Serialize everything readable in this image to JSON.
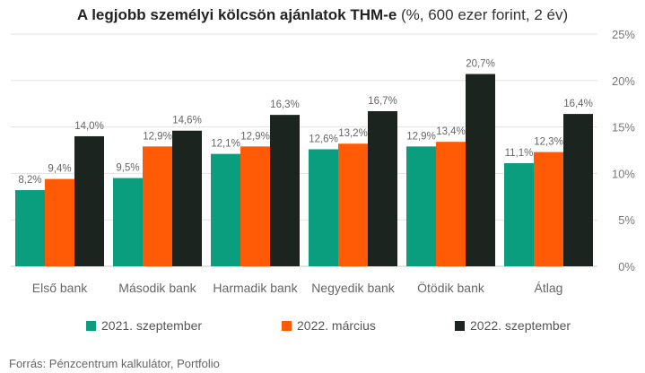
{
  "title": {
    "bold": "A legjobb személyi kölcsön ajánlatok THM-e",
    "light": " (%, 600 ezer forint, 2 év)"
  },
  "source": "Forrás: Pénzcentrum kalkulátor, Portfolio",
  "colors": {
    "2021. szeptember": "#0a9e7f",
    "2022. március": "#ff5a05",
    "2022. szeptember": "#1c2420",
    "grid": "#e3e3e3"
  },
  "chart_data": {
    "type": "bar",
    "title": "A legjobb személyi kölcsön ajánlatok THM-e (%, 600 ezer forint, 2 év)",
    "categories": [
      "Első bank",
      "Második bank",
      "Harmadik bank",
      "Negyedik bank",
      "Ötödik bank",
      "Átlag"
    ],
    "series": [
      {
        "name": "2021. szeptember",
        "values": [
          8.2,
          9.5,
          12.1,
          12.6,
          12.9,
          11.1
        ],
        "labels": [
          "8,2%",
          "9,5%",
          "12,1%",
          "12,6%",
          "12,9%",
          "11,1%"
        ]
      },
      {
        "name": "2022. március",
        "values": [
          9.4,
          12.9,
          12.9,
          13.2,
          13.4,
          12.3
        ],
        "labels": [
          "9,4%",
          "12,9%",
          "12,9%",
          "13,2%",
          "13,4%",
          "12,3%"
        ]
      },
      {
        "name": "2022. szeptember",
        "values": [
          14.0,
          14.6,
          16.3,
          16.7,
          20.7,
          16.4
        ],
        "labels": [
          "14,0%",
          "14,6%",
          "16,3%",
          "16,7%",
          "20,7%",
          "16,4%"
        ]
      }
    ],
    "y_ticks": [
      0,
      5,
      10,
      15,
      20,
      25
    ],
    "y_tick_labels": [
      "0%",
      "5%",
      "10%",
      "15%",
      "20%",
      "25%"
    ],
    "ylim": [
      0,
      25
    ],
    "y_axis_side": "right",
    "grid": true,
    "legend": "bottom"
  }
}
